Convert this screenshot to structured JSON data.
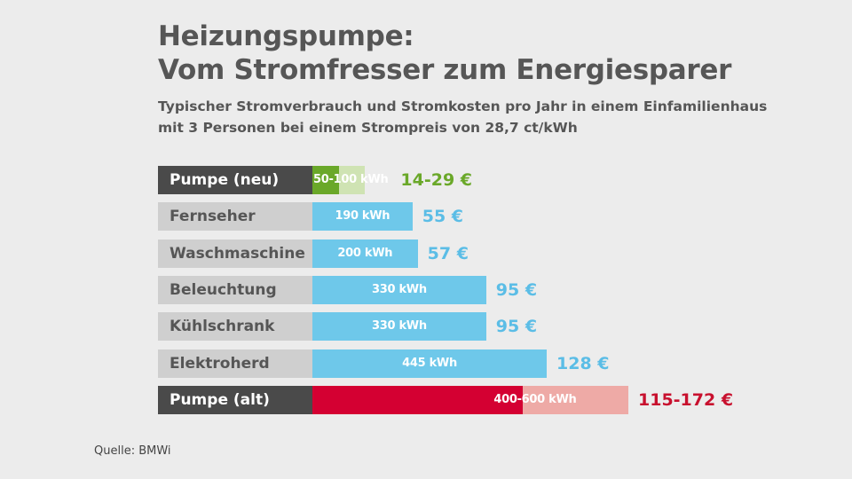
{
  "title_line1": "Heizungspumpe:",
  "title_line2": "Vom Stromfresser zum Energiesparer",
  "subtitle_line1": "Typischer Stromverbrauch und Stromkosten pro Jahr in einem Einfamilienhaus",
  "subtitle_line2": "mit 3 Personen bei einem Strompreis von 28,7 ct/kWh",
  "source": "Quelle: BMWi",
  "chart_data": {
    "type": "bar",
    "orientation": "horizontal",
    "unit": "kWh",
    "xlim": [
      0,
      600
    ],
    "grid": false,
    "categories": [
      "Pumpe (neu)",
      "Fernseher",
      "Waschmaschine",
      "Beleuchtung",
      "Kühlschrank",
      "Elektroherd",
      "Pumpe (alt)"
    ],
    "rows": [
      {
        "label": "Pumpe (neu)",
        "low": 50,
        "high": 100,
        "low_text": "50-100",
        "high_text": " kWh",
        "bar_text": "",
        "cost": "14-29 €",
        "highlight": true,
        "color": "#6aa829",
        "light_color": "#cfe3b3",
        "cost_color": "#6aa829"
      },
      {
        "label": "Fernseher",
        "low": 190,
        "high": null,
        "bar_text": "190 kWh",
        "cost": "55 €",
        "highlight": false,
        "color": "#6ec8ea",
        "cost_color": "#5bbde6"
      },
      {
        "label": "Waschmaschine",
        "low": 200,
        "high": null,
        "bar_text": "200 kWh",
        "cost": "57 €",
        "highlight": false,
        "color": "#6ec8ea",
        "cost_color": "#5bbde6"
      },
      {
        "label": "Beleuchtung",
        "low": 330,
        "high": null,
        "bar_text": "330 kWh",
        "cost": "95 €",
        "highlight": false,
        "color": "#6ec8ea",
        "cost_color": "#5bbde6"
      },
      {
        "label": "Kühlschrank",
        "low": 330,
        "high": null,
        "bar_text": "330 kWh",
        "cost": "95 €",
        "highlight": false,
        "color": "#6ec8ea",
        "cost_color": "#5bbde6"
      },
      {
        "label": "Elektroherd",
        "low": 445,
        "high": null,
        "bar_text": "445 kWh",
        "cost": "128 €",
        "highlight": false,
        "color": "#6ec8ea",
        "cost_color": "#5bbde6"
      },
      {
        "label": "Pumpe (alt)",
        "low": 400,
        "high": 600,
        "low_text": "400-",
        "high_text": "600 kWh",
        "bar_text": "",
        "cost": "115-172 €",
        "highlight": true,
        "color": "#d40032",
        "light_color": "#eeaaa6",
        "cost_color": "#c8102e"
      }
    ]
  }
}
